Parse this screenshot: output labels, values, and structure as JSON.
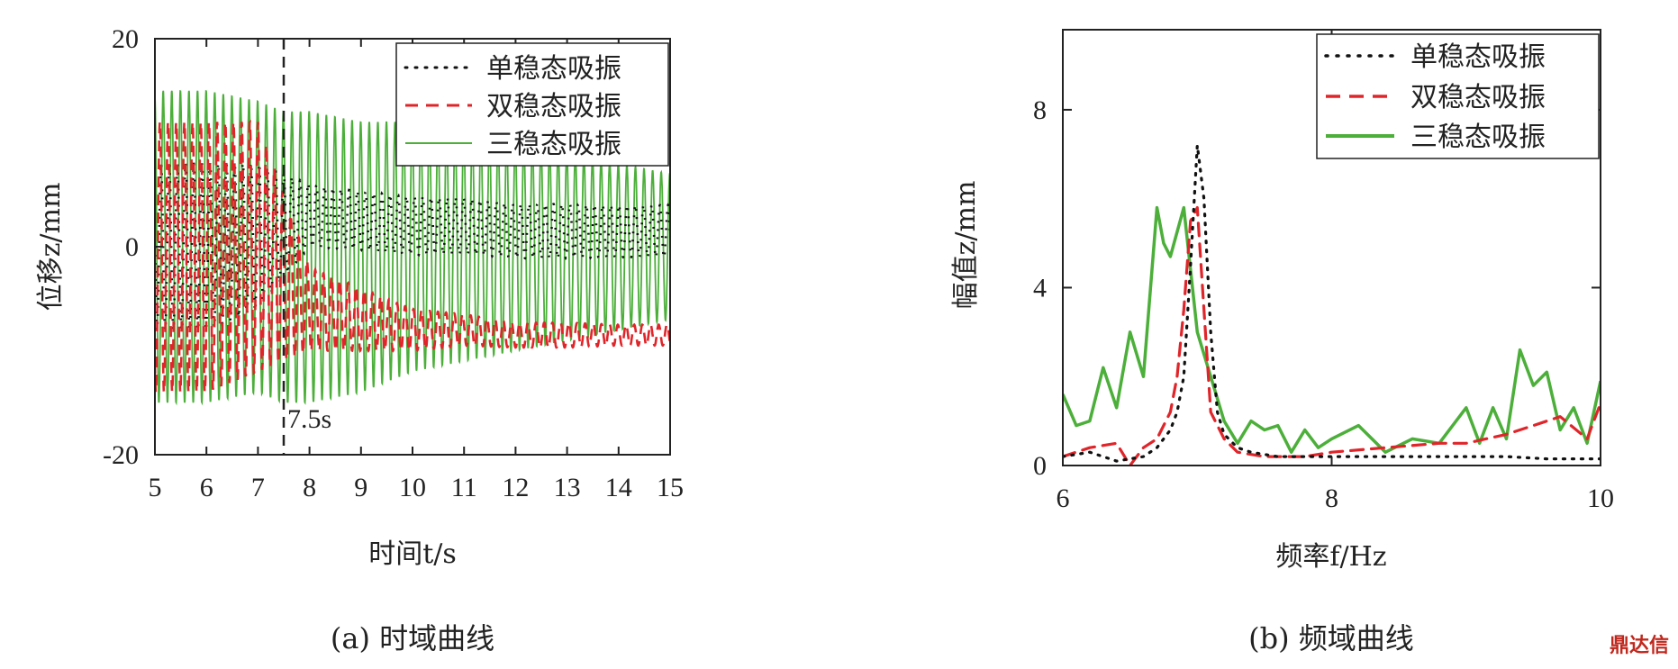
{
  "colors": {
    "mono": "#111111",
    "bi": "#e0252a",
    "tri": "#4caf3a",
    "axis": "#222222"
  },
  "chart_data": [
    {
      "type": "line",
      "caption": "(a) 时域曲线",
      "xlabel": "时间t/s",
      "ylabel": "位移z/mm",
      "xlim": [
        5,
        15
      ],
      "ylim": [
        -20,
        20
      ],
      "xticks": [
        "5",
        "6",
        "7",
        "8",
        "9",
        "10",
        "11",
        "12",
        "13",
        "14",
        "15"
      ],
      "yticks": [
        "-20",
        "0",
        "20"
      ],
      "annotation": {
        "x": 7.5,
        "label": "7.5s"
      },
      "legend_position": "top-right",
      "series": [
        {
          "name": "单稳态吸振",
          "style": "dotted",
          "color": "#111111",
          "envelope": {
            "x": [
              5,
              6,
              7,
              7.5,
              8,
              9,
              10,
              11,
              12,
              13,
              14,
              15
            ],
            "center": [
              0,
              0,
              1,
              2,
              3,
              2.5,
              2,
              2,
              1.5,
              1.5,
              1.5,
              1.5
            ],
            "amp": [
              8,
              8,
              7,
              5,
              3,
              2.8,
              2.8,
              2.7,
              2.6,
              2.6,
              2.5,
              2.5
            ]
          },
          "freq_hz": 6.3
        },
        {
          "name": "双稳态吸振",
          "style": "dashed",
          "color": "#e0252a",
          "envelope": {
            "x": [
              5,
              6,
              7,
              7.5,
              8,
              9,
              10,
              11,
              12,
              13,
              14,
              15
            ],
            "center": [
              -1,
              -1,
              0,
              -3,
              -6,
              -7,
              -8,
              -8,
              -8.5,
              -8.5,
              -8.5,
              -8.5
            ],
            "amp": [
              13,
              13,
              12,
              8,
              4,
              3,
              2,
              1.5,
              1.2,
              1.2,
              1,
              1
            ]
          },
          "freq_hz": 6.3
        },
        {
          "name": "三稳态吸振",
          "style": "solid",
          "color": "#4caf3a",
          "envelope": {
            "x": [
              5,
              6,
              7,
              7.5,
              8,
              9,
              10,
              11,
              12,
              13,
              14,
              15
            ],
            "center": [
              0,
              0,
              0,
              -1,
              -1,
              -1,
              0,
              0,
              0,
              0,
              0,
              0
            ],
            "amp": [
              15,
              15,
              14,
              14,
              14,
              13,
              12,
              11,
              10,
              9,
              8,
              7
            ]
          },
          "freq_hz": 6.0
        }
      ]
    },
    {
      "type": "line",
      "caption": "(b) 频域曲线",
      "xlabel": "频率f/Hz",
      "ylabel": "幅值z/mm",
      "xlim": [
        6,
        10
      ],
      "ylim": [
        0,
        9.8
      ],
      "xticks": [
        "6",
        "8",
        "10"
      ],
      "yticks": [
        "0",
        "4",
        "8"
      ],
      "legend_position": "top-right",
      "series": [
        {
          "name": "单稳态吸振",
          "style": "dotted",
          "color": "#111111",
          "x": [
            6,
            6.2,
            6.4,
            6.6,
            6.7,
            6.8,
            6.85,
            6.9,
            6.95,
            7.0,
            7.05,
            7.1,
            7.15,
            7.2,
            7.3,
            7.4,
            7.6,
            7.8,
            8.0,
            8.2,
            8.5,
            8.8,
            9.0,
            9.3,
            9.6,
            10.0
          ],
          "y": [
            0.2,
            0.3,
            0.1,
            0.2,
            0.4,
            0.8,
            1.2,
            2,
            4.5,
            7.2,
            6,
            3,
            1.2,
            0.7,
            0.4,
            0.3,
            0.2,
            0.2,
            0.2,
            0.2,
            0.2,
            0.2,
            0.2,
            0.2,
            0.15,
            0.15
          ]
        },
        {
          "name": "双稳态吸振",
          "style": "dashed",
          "color": "#e0252a",
          "x": [
            6,
            6.2,
            6.4,
            6.5,
            6.6,
            6.7,
            6.8,
            6.85,
            6.9,
            6.95,
            7.0,
            7.05,
            7.1,
            7.2,
            7.3,
            7.5,
            7.8,
            8.0,
            8.4,
            8.8,
            9.0,
            9.3,
            9.5,
            9.7,
            9.9,
            10.0
          ],
          "y": [
            0.2,
            0.4,
            0.5,
            0,
            0.4,
            0.6,
            1.2,
            2,
            3.5,
            5.5,
            5.8,
            3.5,
            1.2,
            0.6,
            0.3,
            0.2,
            0.2,
            0.3,
            0.4,
            0.5,
            0.5,
            0.7,
            0.9,
            1.1,
            0.6,
            1.4
          ]
        },
        {
          "name": "三稳态吸振",
          "style": "solid",
          "color": "#4caf3a",
          "x": [
            6,
            6.1,
            6.2,
            6.3,
            6.4,
            6.5,
            6.6,
            6.7,
            6.75,
            6.8,
            6.9,
            7.0,
            7.1,
            7.2,
            7.3,
            7.4,
            7.5,
            7.6,
            7.7,
            7.8,
            7.9,
            8.0,
            8.2,
            8.4,
            8.6,
            8.8,
            9.0,
            9.1,
            9.2,
            9.3,
            9.4,
            9.5,
            9.6,
            9.7,
            9.8,
            9.9,
            10.0
          ],
          "y": [
            1.6,
            0.9,
            1.0,
            2.2,
            1.3,
            3.0,
            2.0,
            5.8,
            5.0,
            4.7,
            5.8,
            3.0,
            2.0,
            1.0,
            0.5,
            1.0,
            0.8,
            0.9,
            0.3,
            0.8,
            0.4,
            0.6,
            0.9,
            0.3,
            0.6,
            0.5,
            1.3,
            0.5,
            1.3,
            0.6,
            2.6,
            1.8,
            2.1,
            0.8,
            1.3,
            0.5,
            1.9
          ]
        }
      ]
    }
  ],
  "watermark": "鼎达信"
}
